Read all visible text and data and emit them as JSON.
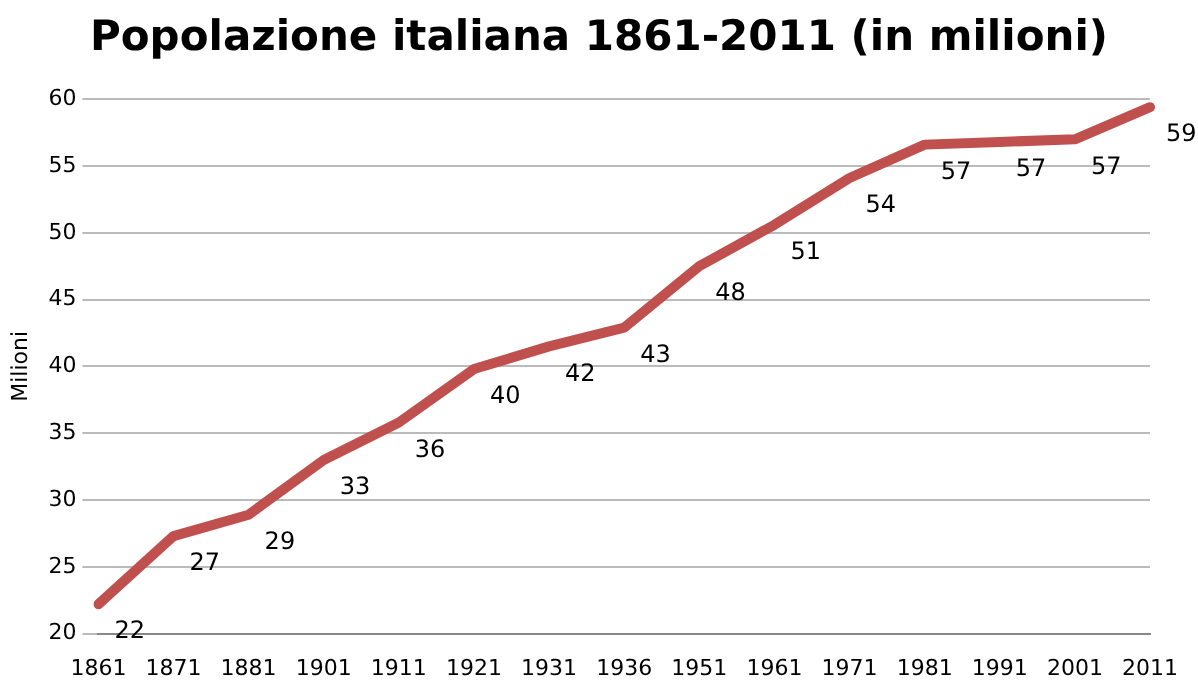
{
  "chart_data": {
    "type": "line",
    "title": "Popolazione italiana 1861-2011 (in milioni)",
    "ylabel": "Milioni",
    "categories": [
      "1861",
      "1871",
      "1881",
      "1901",
      "1911",
      "1921",
      "1931",
      "1936",
      "1951",
      "1961",
      "1971",
      "1981",
      "1991",
      "2001",
      "2011"
    ],
    "series": [
      {
        "color": "#c0504d",
        "values": [
          22.2,
          27.3,
          28.9,
          33.0,
          35.8,
          39.8,
          41.5,
          42.9,
          47.5,
          50.6,
          54.1,
          56.6,
          56.8,
          57.0,
          59.4
        ],
        "value_labels": [
          "22",
          "27",
          "29",
          "33",
          "36",
          "40",
          "42",
          "43",
          "48",
          "51",
          "54",
          "57",
          "57",
          "57",
          "59"
        ]
      }
    ],
    "ylim": [
      20,
      60
    ],
    "yticks": [
      20,
      25,
      30,
      35,
      40,
      45,
      50,
      55,
      60
    ],
    "grid": "y",
    "marker": "none",
    "line_style": "solid"
  }
}
